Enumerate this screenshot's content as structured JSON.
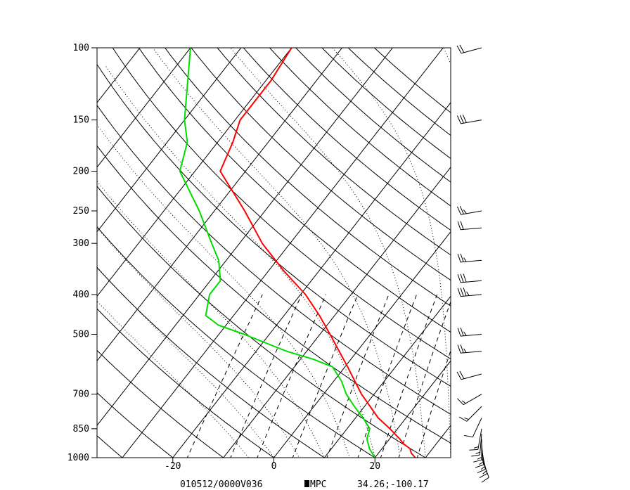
{
  "chart_data": {
    "type": "skew-t",
    "footer": {
      "valid": "010512/0000V036",
      "source": "MPC",
      "location": "34.26;-100.17"
    },
    "x_ticks": [
      {
        "value": -20,
        "label": "-20"
      },
      {
        "value": 0,
        "label": "0"
      },
      {
        "value": 20,
        "label": "20"
      }
    ],
    "pressure_ticks": [
      {
        "value": 100,
        "label": "100"
      },
      {
        "value": 150,
        "label": "150"
      },
      {
        "value": 200,
        "label": "200"
      },
      {
        "value": 250,
        "label": "250"
      },
      {
        "value": 300,
        "label": "300"
      },
      {
        "value": 400,
        "label": "400"
      },
      {
        "value": 500,
        "label": "500"
      },
      {
        "value": 700,
        "label": "700"
      },
      {
        "value": 850,
        "label": "850"
      },
      {
        "value": 1000,
        "label": "1000"
      }
    ],
    "pressure_range": [
      1000,
      100
    ],
    "temperature_range_at_1000": [
      -35,
      35
    ],
    "skew_degC_per_log_decade": 63.5,
    "colors": {
      "temperature": "#ff0000",
      "dewpoint": "#00dd00",
      "background_lines": "#000000"
    },
    "isotherms": [
      -110,
      -100,
      -90,
      -80,
      -70,
      -60,
      -50,
      -40,
      -30,
      -20,
      -10,
      0,
      10,
      20,
      30
    ],
    "dry_adiabats_theta_C": [
      -30,
      -20,
      -10,
      0,
      10,
      20,
      30,
      40,
      50,
      60,
      70,
      80,
      90,
      100,
      110,
      120,
      130,
      140,
      150,
      160,
      170
    ],
    "moist_adiabats_thetaw_C": [
      -5,
      0,
      5,
      10,
      15,
      20,
      25,
      30,
      35,
      40
    ],
    "mixing_ratio_lines_gkg": [
      1,
      2,
      3,
      5,
      8,
      12,
      16,
      20,
      25
    ],
    "temperature_profile": [
      {
        "p": 1000,
        "t": 28.0
      },
      {
        "p": 975,
        "t": 26.5
      },
      {
        "p": 950,
        "t": 25.5
      },
      {
        "p": 925,
        "t": 23.5
      },
      {
        "p": 900,
        "t": 22.0
      },
      {
        "p": 850,
        "t": 18.5
      },
      {
        "p": 800,
        "t": 14.5
      },
      {
        "p": 700,
        "t": 7.5
      },
      {
        "p": 600,
        "t": 0.5
      },
      {
        "p": 500,
        "t": -8.0
      },
      {
        "p": 450,
        "t": -13.0
      },
      {
        "p": 400,
        "t": -19.0
      },
      {
        "p": 350,
        "t": -27.0
      },
      {
        "p": 300,
        "t": -35.5
      },
      {
        "p": 250,
        "t": -44.0
      },
      {
        "p": 200,
        "t": -55.0
      },
      {
        "p": 170,
        "t": -57.0
      },
      {
        "p": 150,
        "t": -59.0
      },
      {
        "p": 120,
        "t": -59.0
      },
      {
        "p": 100,
        "t": -60.0
      }
    ],
    "dewpoint_profile": [
      {
        "p": 1000,
        "t": 20.0
      },
      {
        "p": 950,
        "t": 17.5
      },
      {
        "p": 900,
        "t": 15.5
      },
      {
        "p": 850,
        "t": 14.5
      },
      {
        "p": 800,
        "t": 11.5
      },
      {
        "p": 750,
        "t": 8.0
      },
      {
        "p": 700,
        "t": 4.5
      },
      {
        "p": 650,
        "t": 1.5
      },
      {
        "p": 600,
        "t": -2.5
      },
      {
        "p": 575,
        "t": -7.5
      },
      {
        "p": 550,
        "t": -14.0
      },
      {
        "p": 500,
        "t": -25.0
      },
      {
        "p": 475,
        "t": -31.5
      },
      {
        "p": 450,
        "t": -35.5
      },
      {
        "p": 400,
        "t": -38.0
      },
      {
        "p": 370,
        "t": -38.0
      },
      {
        "p": 330,
        "t": -41.5
      },
      {
        "p": 300,
        "t": -45.5
      },
      {
        "p": 250,
        "t": -53.0
      },
      {
        "p": 200,
        "t": -63.0
      },
      {
        "p": 170,
        "t": -66.0
      },
      {
        "p": 150,
        "t": -70.0
      },
      {
        "p": 100,
        "t": -80.0
      }
    ],
    "wind_barbs": [
      {
        "p": 100,
        "dir": 255,
        "spd": 20
      },
      {
        "p": 150,
        "dir": 260,
        "spd": 30
      },
      {
        "p": 250,
        "dir": 260,
        "spd": 25
      },
      {
        "p": 275,
        "dir": 265,
        "spd": 20
      },
      {
        "p": 330,
        "dir": 265,
        "spd": 25
      },
      {
        "p": 370,
        "dir": 265,
        "spd": 30
      },
      {
        "p": 400,
        "dir": 265,
        "spd": 35
      },
      {
        "p": 500,
        "dir": 265,
        "spd": 25
      },
      {
        "p": 550,
        "dir": 265,
        "spd": 25
      },
      {
        "p": 625,
        "dir": 255,
        "spd": 20
      },
      {
        "p": 700,
        "dir": 240,
        "spd": 15
      },
      {
        "p": 750,
        "dir": 225,
        "spd": 15
      },
      {
        "p": 800,
        "dir": 205,
        "spd": 10
      },
      {
        "p": 850,
        "dir": 190,
        "spd": 15
      },
      {
        "p": 875,
        "dir": 185,
        "spd": 15
      },
      {
        "p": 900,
        "dir": 180,
        "spd": 15
      },
      {
        "p": 925,
        "dir": 175,
        "spd": 15
      },
      {
        "p": 950,
        "dir": 170,
        "spd": 15
      },
      {
        "p": 975,
        "dir": 165,
        "spd": 15
      },
      {
        "p": 1000,
        "dir": 160,
        "spd": 10
      }
    ]
  }
}
